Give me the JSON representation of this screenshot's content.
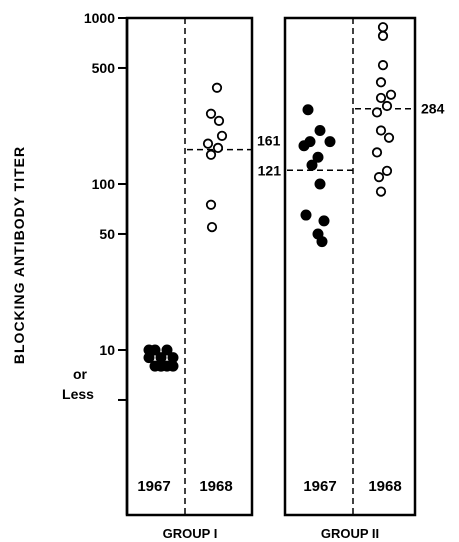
{
  "chart_data": {
    "type": "scatter",
    "ylabel": "BLOCKING ANTIBODY TITER",
    "yscale": "log",
    "ylim": [
      1,
      1000
    ],
    "yticks": [
      {
        "value": 1000,
        "label": "1000"
      },
      {
        "value": 500,
        "label": "500"
      },
      {
        "value": 100,
        "label": "100"
      },
      {
        "value": 50,
        "label": "50"
      },
      {
        "value": 10,
        "label": "10"
      },
      {
        "value": 5,
        "label": ""
      }
    ],
    "y_extra_labels": [
      "or",
      "Less"
    ],
    "groups": [
      {
        "name": "GROUP I",
        "columns": [
          {
            "label": "1967",
            "filled": true,
            "values": [
              10,
              10,
              10,
              9,
              9,
              9,
              8,
              8,
              8,
              8,
              8
            ]
          },
          {
            "label": "1968",
            "filled": false,
            "values": [
              380,
              265,
              240,
              195,
              175,
              165,
              150,
              75,
              55
            ]
          }
        ],
        "reference_label": "161",
        "reference_value": 161
      },
      {
        "name": "GROUP II",
        "columns": [
          {
            "label": "1967",
            "filled": true,
            "values": [
              280,
              210,
              180,
              180,
              170,
              145,
              130,
              100,
              65,
              60,
              50,
              45
            ]
          },
          {
            "label": "1968",
            "filled": false,
            "values": [
              880,
              780,
              520,
              410,
              345,
              330,
              295,
              270,
              210,
              190,
              155,
              120,
              110,
              90
            ]
          }
        ],
        "reference_label": "121",
        "reference_value": 121,
        "reference2_label": "284",
        "reference2_value": 284
      }
    ]
  }
}
